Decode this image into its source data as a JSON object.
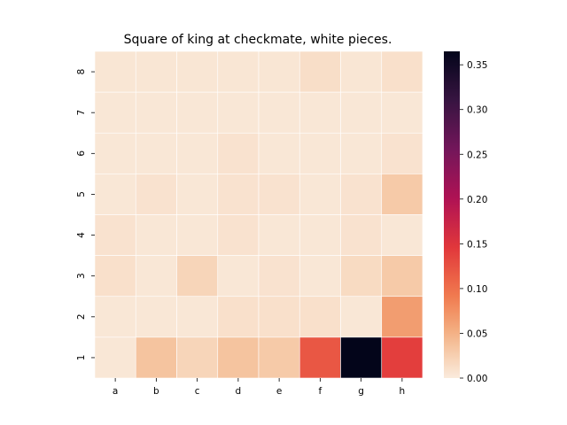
{
  "chart_data": {
    "type": "heatmap",
    "title": "Square of king at checkmate, white pieces.",
    "xlabel": "",
    "ylabel": "",
    "x_categories": [
      "a",
      "b",
      "c",
      "d",
      "e",
      "f",
      "g",
      "h"
    ],
    "y_categories": [
      "8",
      "7",
      "6",
      "5",
      "4",
      "3",
      "2",
      "1"
    ],
    "values": [
      [
        0.005,
        0.005,
        0.005,
        0.005,
        0.005,
        0.012,
        0.005,
        0.01
      ],
      [
        0.004,
        0.004,
        0.004,
        0.004,
        0.004,
        0.004,
        0.004,
        0.004
      ],
      [
        0.004,
        0.004,
        0.004,
        0.008,
        0.004,
        0.004,
        0.004,
        0.008
      ],
      [
        0.004,
        0.008,
        0.004,
        0.008,
        0.008,
        0.004,
        0.008,
        0.03
      ],
      [
        0.008,
        0.004,
        0.004,
        0.008,
        0.004,
        0.004,
        0.008,
        0.004
      ],
      [
        0.01,
        0.004,
        0.02,
        0.004,
        0.008,
        0.004,
        0.015,
        0.03
      ],
      [
        0.004,
        0.004,
        0.004,
        0.01,
        0.01,
        0.01,
        0.004,
        0.065
      ],
      [
        0.004,
        0.035,
        0.02,
        0.035,
        0.03,
        0.12,
        0.365,
        0.14
      ]
    ],
    "colorbar": {
      "min": 0,
      "max": 0.365,
      "ticks": [
        "0.00",
        "0.05",
        "0.10",
        "0.15",
        "0.20",
        "0.25",
        "0.30",
        "0.35"
      ],
      "colormap": "rocket_r"
    },
    "grid": false
  }
}
